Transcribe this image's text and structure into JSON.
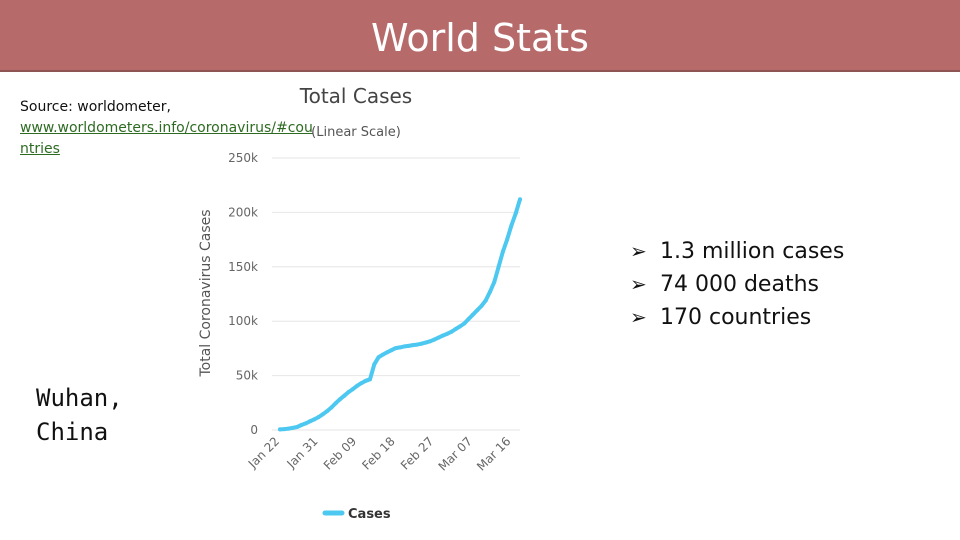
{
  "slide": {
    "title": "World Stats",
    "source_label": "Source: worldometer,",
    "source_url": "www.worldometers.info/coronavirus/#countries",
    "caption": "Wuhan, China",
    "bullets": [
      {
        "text": "1.3 million cases",
        "icon": "arrow-bullet-icon"
      },
      {
        "text": "74 000 deaths",
        "icon": "arrow-bullet-icon"
      },
      {
        "text": "170 countries",
        "icon": "arrow-bullet-icon"
      }
    ],
    "colors": {
      "title_bar": "#b76a6a",
      "link": "#2d6b22",
      "series": "#4dc8f0"
    }
  },
  "chart_data": {
    "type": "line",
    "title": "Total Cases",
    "subtitle": "(Linear Scale)",
    "ylabel": "Total Coronavirus Cases",
    "xlabel": "",
    "ylim": [
      0,
      250000
    ],
    "y_ticks": [
      "0",
      "50k",
      "100k",
      "150k",
      "200k",
      "250k"
    ],
    "x_ticks": [
      "Jan 22",
      "Jan 31",
      "Feb 09",
      "Feb 18",
      "Feb 27",
      "Mar 07",
      "Mar 16"
    ],
    "grid": true,
    "legend_position": "bottom",
    "series": [
      {
        "name": "Cases",
        "color": "#4dc8f0",
        "x": [
          "Jan 22",
          "Jan 23",
          "Jan 24",
          "Jan 25",
          "Jan 26",
          "Jan 27",
          "Jan 28",
          "Jan 29",
          "Jan 30",
          "Jan 31",
          "Feb 01",
          "Feb 02",
          "Feb 03",
          "Feb 04",
          "Feb 05",
          "Feb 06",
          "Feb 07",
          "Feb 08",
          "Feb 09",
          "Feb 10",
          "Feb 11",
          "Feb 12",
          "Feb 13",
          "Feb 14",
          "Feb 15",
          "Feb 16",
          "Feb 17",
          "Feb 18",
          "Feb 19",
          "Feb 20",
          "Feb 21",
          "Feb 22",
          "Feb 23",
          "Feb 24",
          "Feb 25",
          "Feb 26",
          "Feb 27",
          "Feb 28",
          "Feb 29",
          "Mar 01",
          "Mar 02",
          "Mar 03",
          "Mar 04",
          "Mar 05",
          "Mar 06",
          "Mar 07",
          "Mar 08",
          "Mar 09",
          "Mar 10",
          "Mar 11",
          "Mar 12",
          "Mar 13",
          "Mar 14",
          "Mar 15",
          "Mar 16",
          "Mar 17",
          "Mar 18"
        ],
        "values": [
          580,
          850,
          1300,
          2000,
          2800,
          4600,
          6100,
          8000,
          9800,
          11900,
          14500,
          17400,
          20700,
          24600,
          28300,
          31500,
          34900,
          37600,
          40600,
          43100,
          45200,
          46600,
          60400,
          66900,
          69300,
          71400,
          73300,
          75300,
          75900,
          76800,
          77300,
          78000,
          78500,
          79300,
          80300,
          81500,
          83100,
          84900,
          86800,
          88400,
          90300,
          92800,
          95200,
          97900,
          102000,
          106000,
          110000,
          114000,
          119000,
          127000,
          136000,
          150000,
          164000,
          175000,
          188000,
          199000,
          212000
        ]
      }
    ]
  }
}
